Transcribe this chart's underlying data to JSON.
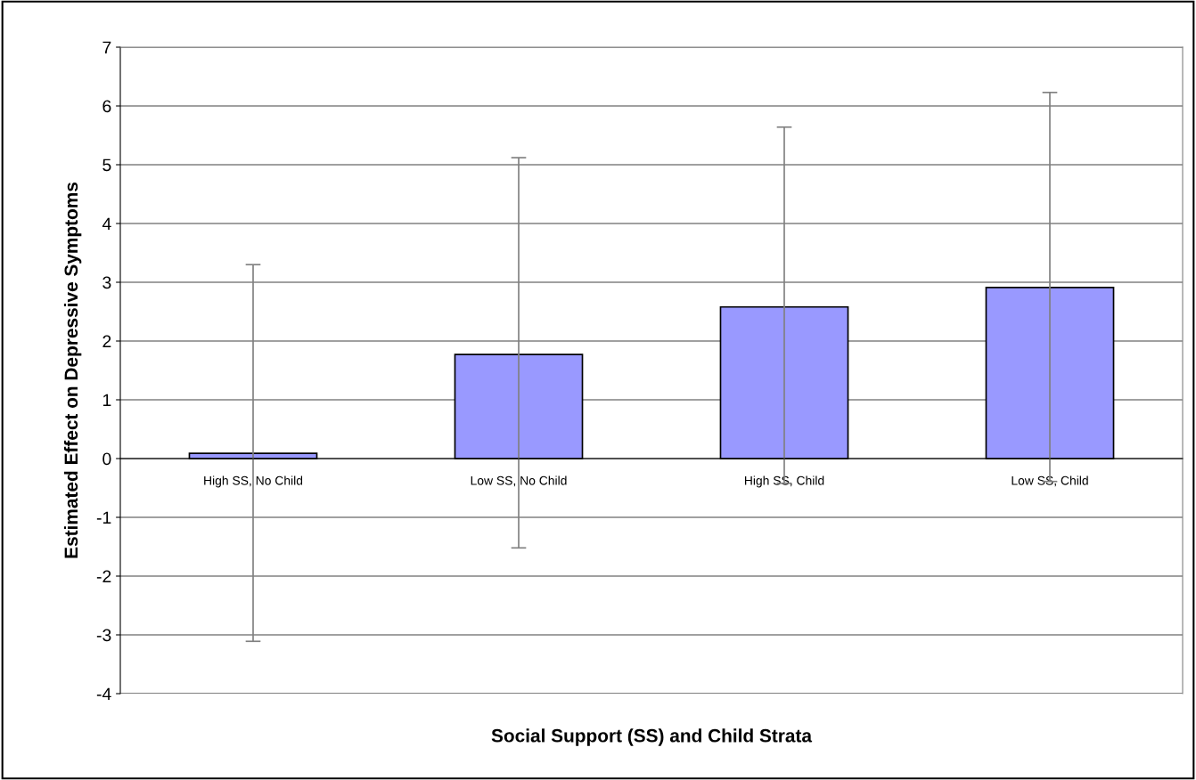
{
  "chart_data": {
    "type": "bar",
    "xlabel": "Social Support (SS) and Child Strata",
    "ylabel": "Estimated Effect on Depressive Symptoms",
    "categories": [
      "High SS, No Child",
      "Low SS, No Child",
      "High SS, Child",
      "Low SS, Child"
    ],
    "values": [
      0.09,
      1.77,
      2.58,
      2.91
    ],
    "errors": [
      [
        -3.11,
        3.3
      ],
      [
        -1.52,
        5.12
      ],
      [
        -0.42,
        5.64
      ],
      [
        -0.39,
        6.23
      ]
    ],
    "color": "#9999ff",
    "ylim": [
      -4,
      7
    ],
    "yticks": [
      -4,
      -3,
      -2,
      -1,
      0,
      1,
      2,
      3,
      4,
      5,
      6,
      7
    ],
    "grid": "y",
    "legend": false
  }
}
